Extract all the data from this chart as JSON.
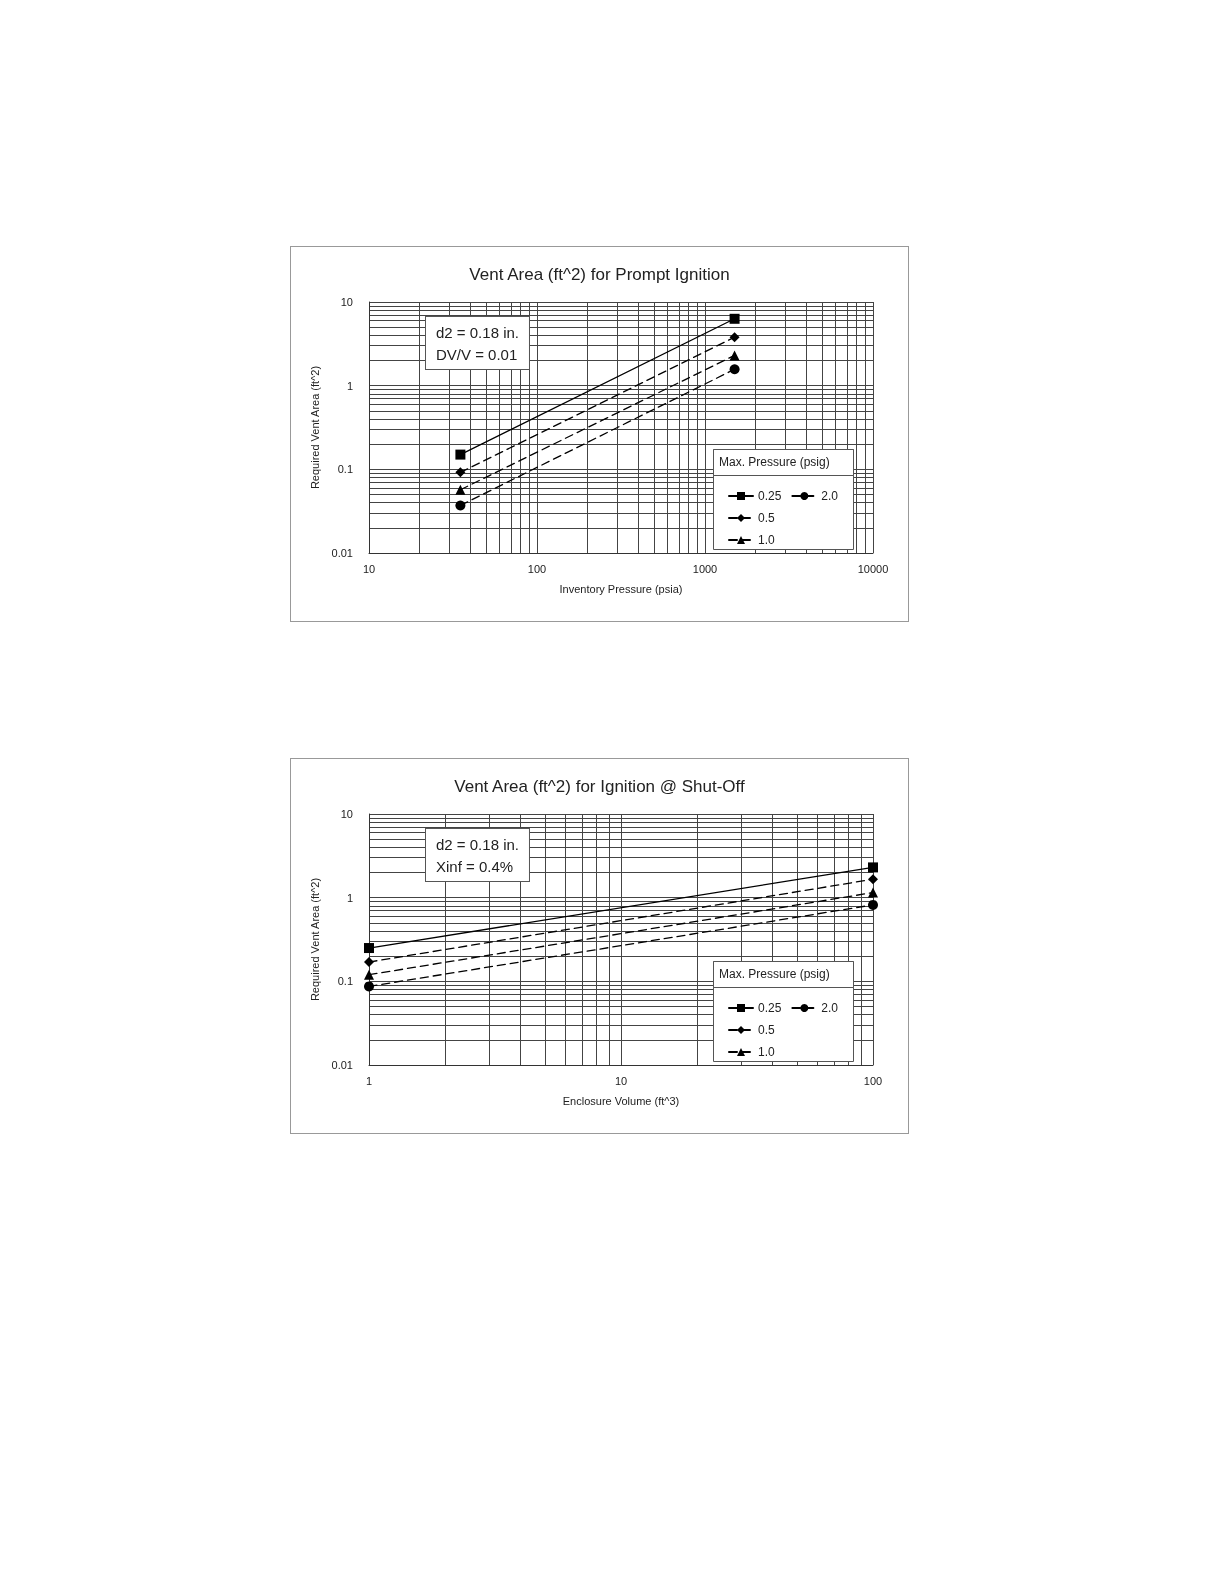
{
  "chart_data": [
    {
      "type": "line",
      "title": "Vent Area (ft^2) for Prompt Ignition",
      "xlabel": "Inventory Pressure (psia)",
      "ylabel": "Required Vent Area (ft^2)",
      "legend_title": "Max. Pressure (psig)",
      "legend": "bottom right",
      "log": "xy",
      "grid": true,
      "annotations": [
        "d2 = 0.18 in.\nDV/V = 0.01"
      ],
      "xlim": [
        10,
        10000
      ],
      "ylim": [
        0.01,
        10
      ],
      "xticks": [
        10,
        {
          "value": 20,
          "label": null
        },
        {
          "value": 30,
          "label": null
        },
        {
          "value": 40,
          "label": null
        },
        {
          "value": 50,
          "label": null
        },
        {
          "value": 60,
          "label": null
        },
        {
          "value": 70,
          "label": null
        },
        {
          "value": 80,
          "label": null
        },
        {
          "value": 90,
          "label": null
        },
        100,
        {
          "value": 200,
          "label": null
        },
        {
          "value": 300,
          "label": null
        },
        {
          "value": 400,
          "label": null
        },
        {
          "value": 500,
          "label": null
        },
        {
          "value": 600,
          "label": null
        },
        {
          "value": 700,
          "label": null
        },
        {
          "value": 800,
          "label": null
        },
        {
          "value": 900,
          "label": null
        },
        1000,
        {
          "value": 2000,
          "label": null
        },
        {
          "value": 3000,
          "label": null
        },
        {
          "value": 4000,
          "label": null
        },
        {
          "value": 5000,
          "label": null
        },
        {
          "value": 6000,
          "label": null
        },
        {
          "value": 7000,
          "label": null
        },
        {
          "value": 8000,
          "label": null
        },
        {
          "value": 9000,
          "label": null
        },
        10000
      ],
      "yticks": [
        0.01,
        {
          "value": 0.02,
          "label": null
        },
        {
          "value": 0.03,
          "label": null
        },
        {
          "value": 0.04,
          "label": null
        },
        {
          "value": 0.05,
          "label": null
        },
        {
          "value": 0.06,
          "label": null
        },
        {
          "value": 0.07,
          "label": null
        },
        {
          "value": 0.08,
          "label": null
        },
        {
          "value": 0.09,
          "label": null
        },
        0.1,
        {
          "value": 0.2,
          "label": null
        },
        {
          "value": 0.3,
          "label": null
        },
        {
          "value": 0.4,
          "label": null
        },
        {
          "value": 0.5,
          "label": null
        },
        {
          "value": 0.6,
          "label": null
        },
        {
          "value": 0.7,
          "label": null
        },
        {
          "value": 0.8,
          "label": null
        },
        {
          "value": 0.9,
          "label": null
        },
        1,
        {
          "value": 2,
          "label": null
        },
        {
          "value": 3,
          "label": null
        },
        {
          "value": 4,
          "label": null
        },
        {
          "value": 5,
          "label": null
        },
        {
          "value": 6,
          "label": null
        },
        {
          "value": 7,
          "label": null
        },
        {
          "value": 8,
          "label": null
        },
        {
          "value": 9,
          "label": null
        },
        10
      ],
      "x": [
        35,
        1500
      ],
      "series": [
        {
          "name": "0.25",
          "color": "#000000",
          "marker": "square",
          "line_style": "solid",
          "values": [
            0.15,
            6.3
          ]
        },
        {
          "name": "0.5",
          "color": "#000000",
          "marker": "diamond",
          "line_style": "dashed",
          "values": [
            0.092,
            3.8
          ]
        },
        {
          "name": "1.0",
          "color": "#000000",
          "marker": "triangle",
          "line_style": "dashed",
          "values": [
            0.057,
            2.3
          ]
        },
        {
          "name": "2.0",
          "color": "#000000",
          "marker": "circle",
          "line_style": "dashed",
          "values": [
            0.037,
            1.57
          ]
        }
      ]
    },
    {
      "type": "line",
      "title": "Vent Area (ft^2) for Ignition @ Shut-Off",
      "xlabel": "Enclosure Volume (ft^3)",
      "ylabel": "Required Vent Area (ft^2)",
      "legend_title": "Max. Pressure (psig)",
      "legend": "bottom right",
      "log": "xy",
      "grid": true,
      "annotations": [
        "d2 = 0.18 in.\nXinf = 0.4%"
      ],
      "xlim": [
        1,
        100
      ],
      "ylim": [
        0.01,
        10
      ],
      "xticks": [
        1,
        {
          "value": 2,
          "label": null
        },
        {
          "value": 3,
          "label": null
        },
        {
          "value": 4,
          "label": null
        },
        {
          "value": 5,
          "label": null
        },
        {
          "value": 6,
          "label": null
        },
        {
          "value": 7,
          "label": null
        },
        {
          "value": 8,
          "label": null
        },
        {
          "value": 9,
          "label": null
        },
        10,
        {
          "value": 20,
          "label": null
        },
        {
          "value": 30,
          "label": null
        },
        {
          "value": 40,
          "label": null
        },
        {
          "value": 50,
          "label": null
        },
        {
          "value": 60,
          "label": null
        },
        {
          "value": 70,
          "label": null
        },
        {
          "value": 80,
          "label": null
        },
        {
          "value": 90,
          "label": null
        },
        100
      ],
      "yticks": [
        0.01,
        {
          "value": 0.02,
          "label": null
        },
        {
          "value": 0.03,
          "label": null
        },
        {
          "value": 0.04,
          "label": null
        },
        {
          "value": 0.05,
          "label": null
        },
        {
          "value": 0.06,
          "label": null
        },
        {
          "value": 0.07,
          "label": null
        },
        {
          "value": 0.08,
          "label": null
        },
        {
          "value": 0.09,
          "label": null
        },
        0.1,
        {
          "value": 0.2,
          "label": null
        },
        {
          "value": 0.3,
          "label": null
        },
        {
          "value": 0.4,
          "label": null
        },
        {
          "value": 0.5,
          "label": null
        },
        {
          "value": 0.6,
          "label": null
        },
        {
          "value": 0.7,
          "label": null
        },
        {
          "value": 0.8,
          "label": null
        },
        {
          "value": 0.9,
          "label": null
        },
        1,
        {
          "value": 2,
          "label": null
        },
        {
          "value": 3,
          "label": null
        },
        {
          "value": 4,
          "label": null
        },
        {
          "value": 5,
          "label": null
        },
        {
          "value": 6,
          "label": null
        },
        {
          "value": 7,
          "label": null
        },
        {
          "value": 8,
          "label": null
        },
        {
          "value": 9,
          "label": null
        },
        10
      ],
      "x": [
        1,
        100
      ],
      "series": [
        {
          "name": "0.25",
          "color": "#000000",
          "marker": "square",
          "line_style": "solid",
          "values": [
            0.25,
            2.3
          ]
        },
        {
          "name": "0.5",
          "color": "#000000",
          "marker": "diamond",
          "line_style": "dashed",
          "values": [
            0.17,
            1.66
          ]
        },
        {
          "name": "1.0",
          "color": "#000000",
          "marker": "triangle",
          "line_style": "dashed",
          "values": [
            0.12,
            1.15
          ]
        },
        {
          "name": "2.0",
          "color": "#000000",
          "marker": "circle",
          "line_style": "dashed",
          "values": [
            0.087,
            0.82
          ]
        }
      ]
    }
  ]
}
